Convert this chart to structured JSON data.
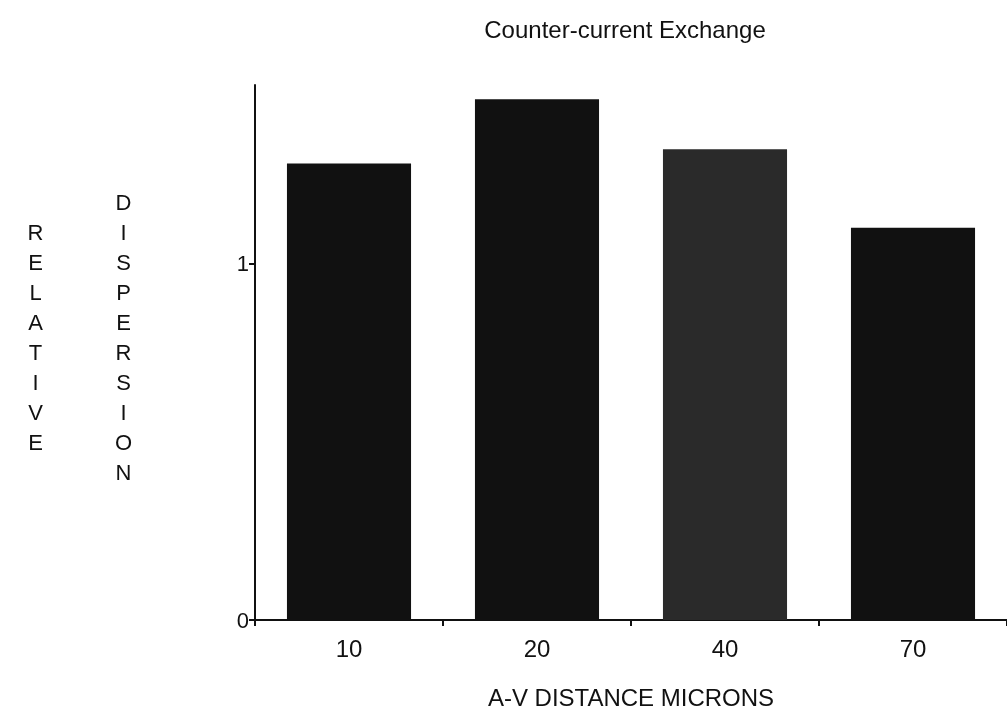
{
  "chart_data": {
    "type": "bar",
    "title": "Counter-current Exchange",
    "xlabel": "A-V DISTANCE MICRONS",
    "ylabel": "RELATIVE DISPERSION",
    "categories": [
      "10",
      "20",
      "40",
      "70"
    ],
    "values": [
      1.28,
      1.46,
      1.32,
      1.1
    ],
    "colors": [
      "#111111",
      "#111111",
      "#2a2a2a",
      "#111111"
    ],
    "ylim": [
      0,
      1.5
    ],
    "yticks": [
      0,
      1
    ],
    "grid": false
  }
}
